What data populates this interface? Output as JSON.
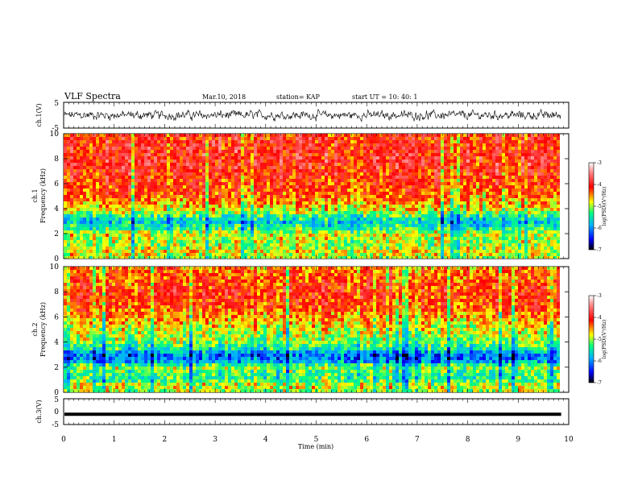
{
  "header": {
    "title": "VLF Spectra",
    "date": "Mar.10, 2018",
    "station": "station= KAP",
    "start": "start  UT =   10: 40: 1"
  },
  "chart_data": [
    {
      "type": "line",
      "panel": "ch1-waveform",
      "ylabel": "ch.1(V)",
      "ylim": [
        -5,
        5
      ],
      "yticks": [
        "5",
        "-5"
      ],
      "x_range_min": [
        0,
        9.85
      ],
      "description_values": {
        "typical_amplitude_V": [
          -1.5,
          1.5
        ]
      },
      "color": "#000000"
    },
    {
      "type": "heatmap",
      "panel": "ch1-spectrogram",
      "ylabel": "ch.1\nFrequency  (kHz)",
      "ylabel_lines": [
        "ch.1",
        "Frequency  (kHz)"
      ],
      "ylim": [
        0,
        10
      ],
      "yticks": [
        "0",
        "2",
        "4",
        "6",
        "8",
        "10"
      ],
      "x_range_min": [
        0,
        9.85
      ],
      "profile_log_psd": [
        {
          "f": 0.0,
          "v": -5.0
        },
        {
          "f": 0.5,
          "v": -4.7
        },
        {
          "f": 1.0,
          "v": -5.0
        },
        {
          "f": 1.5,
          "v": -4.9
        },
        {
          "f": 2.0,
          "v": -4.8
        },
        {
          "f": 2.5,
          "v": -5.4
        },
        {
          "f": 3.0,
          "v": -5.7
        },
        {
          "f": 3.5,
          "v": -5.2
        },
        {
          "f": 4.0,
          "v": -4.7
        },
        {
          "f": 5.0,
          "v": -4.3
        },
        {
          "f": 6.0,
          "v": -4.15
        },
        {
          "f": 7.0,
          "v": -4.05
        },
        {
          "f": 8.0,
          "v": -3.95
        },
        {
          "f": 9.0,
          "v": -4.05
        },
        {
          "f": 10.0,
          "v": -4.1
        }
      ],
      "colorbar": {
        "label": "log(PSD)(V²/Hz)",
        "range": [
          -7,
          -3
        ],
        "ticks": [
          "-3",
          "-4",
          "-5",
          "-6",
          "-7"
        ]
      }
    },
    {
      "type": "heatmap",
      "panel": "ch2-spectrogram",
      "ylabel_lines": [
        "ch.2",
        "Frequency  (kHz)"
      ],
      "ylim": [
        0,
        10
      ],
      "yticks": [
        "0",
        "2",
        "4",
        "6",
        "8",
        "10"
      ],
      "x_range_min": [
        0,
        9.85
      ],
      "profile_log_psd": [
        {
          "f": 0.0,
          "v": -5.0
        },
        {
          "f": 0.5,
          "v": -4.8
        },
        {
          "f": 1.0,
          "v": -5.3
        },
        {
          "f": 1.5,
          "v": -5.3
        },
        {
          "f": 2.0,
          "v": -5.0
        },
        {
          "f": 2.5,
          "v": -6.0
        },
        {
          "f": 3.0,
          "v": -6.1
        },
        {
          "f": 3.5,
          "v": -5.4
        },
        {
          "f": 4.0,
          "v": -5.1
        },
        {
          "f": 5.0,
          "v": -4.8
        },
        {
          "f": 6.0,
          "v": -4.5
        },
        {
          "f": 7.0,
          "v": -4.2
        },
        {
          "f": 8.0,
          "v": -4.1
        },
        {
          "f": 9.0,
          "v": -4.3
        },
        {
          "f": 10.0,
          "v": -4.4
        }
      ],
      "colorbar": {
        "label": "log(PSD)(V²/Hz)",
        "range": [
          -7,
          -3
        ],
        "ticks": [
          "-3",
          "-4",
          "-5",
          "-6",
          "-7"
        ]
      }
    },
    {
      "type": "line",
      "panel": "ch3-waveform",
      "ylabel": "ch.3(V)",
      "ylim": [
        -5,
        5
      ],
      "yticks": [
        "5",
        "0",
        "-5"
      ],
      "x_range_min": [
        0,
        9.85
      ],
      "value_V": -1.0,
      "color": "#000000"
    }
  ],
  "xaxis": {
    "label": "Time  (min)",
    "ticks": [
      "0",
      "1",
      "2",
      "3",
      "4",
      "5",
      "6",
      "7",
      "8",
      "9",
      "10"
    ],
    "range": [
      0,
      10
    ]
  }
}
